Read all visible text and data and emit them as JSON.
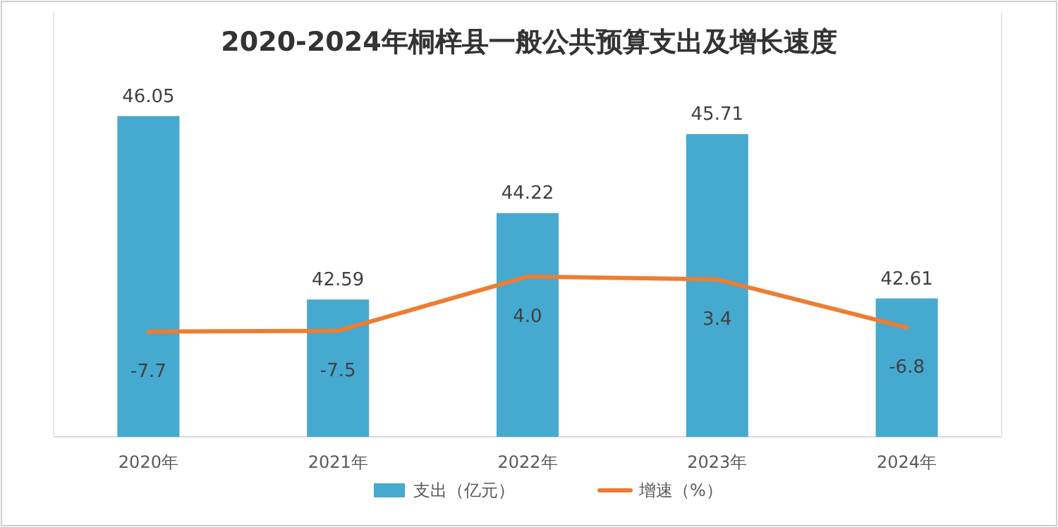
{
  "chart_data": {
    "type": "bar",
    "title": "2020-2024年桐梓县一般公共预算支出及增长速度",
    "categories": [
      "2020年",
      "2021年",
      "2022年",
      "2023年",
      "2024年"
    ],
    "series": [
      {
        "name": "支出（亿元）",
        "color": "#46a9d0",
        "values": [
          46.05,
          42.59,
          44.22,
          45.71,
          42.61
        ],
        "value_labels": [
          "46.05",
          "42.59",
          "44.22",
          "45.71",
          "42.61"
        ]
      },
      {
        "name": "增速（%）",
        "type": "line",
        "axis": "y2",
        "color": "#ed7d31",
        "values": [
          -7.7,
          -7.5,
          4.0,
          3.4,
          -6.8
        ],
        "value_labels": [
          "-7.7",
          "-7.5",
          "4.0",
          "3.4",
          "-6.8"
        ]
      }
    ],
    "ylim": [
      40,
      48
    ],
    "y2lim": [
      -30,
      60
    ],
    "legend": "bottom",
    "tick_labels": "x",
    "marker": "none",
    "line_style": "solid"
  }
}
